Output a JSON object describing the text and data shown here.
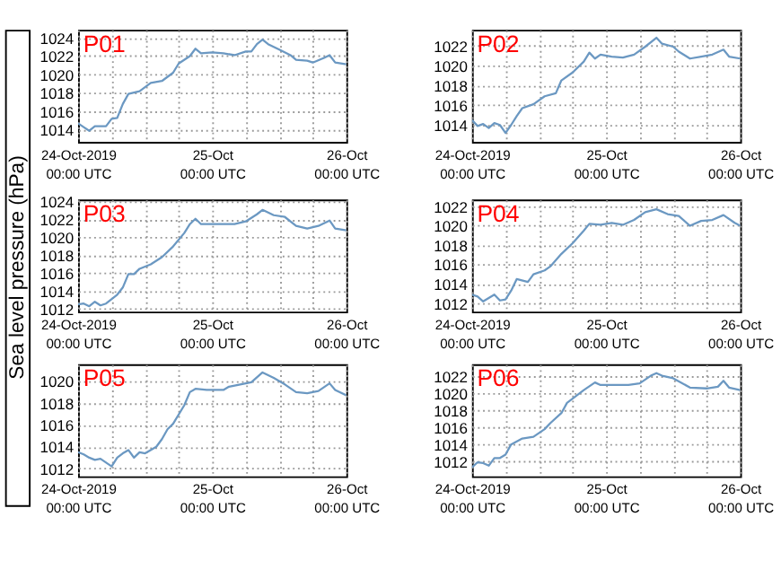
{
  "chart_data": [
    {
      "type": "line",
      "title": "P01",
      "color": "#6b98c2",
      "grid": true,
      "legend": false,
      "marker": "none",
      "line_style": "solid",
      "x": [
        "2019-10-24T00:00",
        "2019-10-24T01:00",
        "2019-10-24T02:00",
        "2019-10-24T03:00",
        "2019-10-24T05:00",
        "2019-10-24T06:00",
        "2019-10-24T07:00",
        "2019-10-24T08:00",
        "2019-10-24T09:00",
        "2019-10-24T11:00",
        "2019-10-24T13:00",
        "2019-10-24T15:00",
        "2019-10-24T17:00",
        "2019-10-24T18:00",
        "2019-10-24T20:00",
        "2019-10-24T21:00",
        "2019-10-24T22:00",
        "2019-10-25T00:00",
        "2019-10-25T02:00",
        "2019-10-25T04:00",
        "2019-10-25T06:00",
        "2019-10-25T07:00",
        "2019-10-25T08:00",
        "2019-10-25T09:00",
        "2019-10-25T10:00",
        "2019-10-25T12:00",
        "2019-10-25T14:00",
        "2019-10-25T15:00",
        "2019-10-25T17:00",
        "2019-10-25T18:00",
        "2019-10-25T20:00",
        "2019-10-25T21:00",
        "2019-10-25T22:00",
        "2019-10-26T00:00"
      ],
      "values": [
        1014.7,
        1014.3,
        1013.9,
        1014.4,
        1014.4,
        1015.2,
        1015.3,
        1016.8,
        1017.9,
        1018.2,
        1019.1,
        1019.3,
        1020.2,
        1021.2,
        1022.0,
        1022.8,
        1022.3,
        1022.4,
        1022.3,
        1022.1,
        1022.5,
        1022.5,
        1023.3,
        1023.8,
        1023.3,
        1022.7,
        1022.1,
        1021.6,
        1021.5,
        1021.3,
        1021.8,
        1022.1,
        1021.3,
        1021.1
      ],
      "xlim": [
        "2019-10-24T00:00",
        "2019-10-26T00:00"
      ],
      "xticks": [
        {
          "value": "2019-10-24T00:00",
          "label": "24-Oct-2019\n00:00 UTC"
        },
        {
          "value": "2019-10-24T06:00",
          "label": null
        },
        {
          "value": "2019-10-24T12:00",
          "label": null
        },
        {
          "value": "2019-10-24T18:00",
          "label": null
        },
        {
          "value": "2019-10-25T00:00",
          "label": "25-Oct\n00:00 UTC"
        },
        {
          "value": "2019-10-25T06:00",
          "label": null
        },
        {
          "value": "2019-10-25T12:00",
          "label": null
        },
        {
          "value": "2019-10-25T18:00",
          "label": null
        },
        {
          "value": "2019-10-26T00:00",
          "label": "26-Oct\n00:00 UTC"
        }
      ],
      "ylim": [
        1012.7,
        1024.85
      ],
      "yticks": [
        1014,
        1016,
        1018,
        1020,
        1022,
        1024
      ]
    },
    {
      "type": "line",
      "title": "P02",
      "color": "#6b98c2",
      "grid": true,
      "legend": false,
      "marker": "none",
      "line_style": "solid",
      "x": [
        "2019-10-24T00:00",
        "2019-10-24T01:00",
        "2019-10-24T02:00",
        "2019-10-24T03:00",
        "2019-10-24T04:00",
        "2019-10-24T05:00",
        "2019-10-24T06:00",
        "2019-10-24T07:00",
        "2019-10-24T08:00",
        "2019-10-24T09:00",
        "2019-10-24T11:00",
        "2019-10-24T13:00",
        "2019-10-24T15:00",
        "2019-10-24T16:00",
        "2019-10-24T18:00",
        "2019-10-24T20:00",
        "2019-10-24T21:00",
        "2019-10-24T22:00",
        "2019-10-24T23:00",
        "2019-10-25T01:00",
        "2019-10-25T03:00",
        "2019-10-25T05:00",
        "2019-10-25T07:00",
        "2019-10-25T09:00",
        "2019-10-25T10:00",
        "2019-10-25T12:00",
        "2019-10-25T13:00",
        "2019-10-25T15:00",
        "2019-10-25T17:00",
        "2019-10-25T19:00",
        "2019-10-25T21:00",
        "2019-10-25T22:00",
        "2019-10-26T00:00"
      ],
      "values": [
        1014.5,
        1013.9,
        1014.1,
        1013.7,
        1014.2,
        1014.0,
        1013.2,
        1014.0,
        1014.9,
        1015.7,
        1016.1,
        1016.9,
        1017.2,
        1018.5,
        1019.3,
        1020.4,
        1021.3,
        1020.7,
        1021.1,
        1020.9,
        1020.8,
        1021.1,
        1021.9,
        1022.8,
        1022.2,
        1021.9,
        1021.4,
        1020.7,
        1020.9,
        1021.1,
        1021.6,
        1020.9,
        1020.7
      ],
      "xlim": [
        "2019-10-24T00:00",
        "2019-10-26T00:00"
      ],
      "xticks": [
        {
          "value": "2019-10-24T00:00",
          "label": "24-Oct-2019\n00:00 UTC"
        },
        {
          "value": "2019-10-24T06:00",
          "label": null
        },
        {
          "value": "2019-10-24T12:00",
          "label": null
        },
        {
          "value": "2019-10-24T18:00",
          "label": null
        },
        {
          "value": "2019-10-25T00:00",
          "label": "25-Oct\n00:00 UTC"
        },
        {
          "value": "2019-10-25T06:00",
          "label": null
        },
        {
          "value": "2019-10-25T12:00",
          "label": null
        },
        {
          "value": "2019-10-25T18:00",
          "label": null
        },
        {
          "value": "2019-10-26T00:00",
          "label": "26-Oct\n00:00 UTC"
        }
      ],
      "ylim": [
        1012.3,
        1023.6
      ],
      "yticks": [
        1014,
        1016,
        1018,
        1020,
        1022
      ]
    },
    {
      "type": "line",
      "title": "P03",
      "ylabel": "Sea level pressure (hPa)",
      "color": "#6b98c2",
      "grid": true,
      "legend": false,
      "marker": "none",
      "line_style": "solid",
      "x": [
        "2019-10-24T00:00",
        "2019-10-24T01:00",
        "2019-10-24T02:00",
        "2019-10-24T03:00",
        "2019-10-24T04:00",
        "2019-10-24T05:00",
        "2019-10-24T07:00",
        "2019-10-24T08:00",
        "2019-10-24T09:00",
        "2019-10-24T10:00",
        "2019-10-24T11:00",
        "2019-10-24T13:00",
        "2019-10-24T15:00",
        "2019-10-24T17:00",
        "2019-10-24T19:00",
        "2019-10-24T20:00",
        "2019-10-24T21:00",
        "2019-10-24T22:00",
        "2019-10-25T00:00",
        "2019-10-25T04:00",
        "2019-10-25T06:00",
        "2019-10-25T08:00",
        "2019-10-25T09:00",
        "2019-10-25T11:00",
        "2019-10-25T13:00",
        "2019-10-25T15:00",
        "2019-10-25T17:00",
        "2019-10-25T19:00",
        "2019-10-25T21:00",
        "2019-10-25T22:00",
        "2019-10-26T00:00"
      ],
      "values": [
        1012.5,
        1012.6,
        1012.3,
        1012.8,
        1012.4,
        1012.6,
        1013.6,
        1014.4,
        1015.9,
        1015.9,
        1016.5,
        1017.0,
        1017.8,
        1019.0,
        1020.5,
        1021.5,
        1022.1,
        1021.5,
        1021.5,
        1021.5,
        1021.8,
        1022.6,
        1023.1,
        1022.5,
        1022.3,
        1021.3,
        1021.0,
        1021.3,
        1021.9,
        1021.0,
        1020.8
      ],
      "xlim": [
        "2019-10-24T00:00",
        "2019-10-26T00:00"
      ],
      "xticks": [
        {
          "value": "2019-10-24T00:00",
          "label": "24-Oct-2019\n00:00 UTC"
        },
        {
          "value": "2019-10-24T06:00",
          "label": null
        },
        {
          "value": "2019-10-24T12:00",
          "label": null
        },
        {
          "value": "2019-10-24T18:00",
          "label": null
        },
        {
          "value": "2019-10-25T00:00",
          "label": "25-Oct\n00:00 UTC"
        },
        {
          "value": "2019-10-25T06:00",
          "label": null
        },
        {
          "value": "2019-10-25T12:00",
          "label": null
        },
        {
          "value": "2019-10-25T18:00",
          "label": null
        },
        {
          "value": "2019-10-26T00:00",
          "label": "26-Oct\n00:00 UTC"
        }
      ],
      "ylim": [
        1011.7,
        1024.25
      ],
      "yticks": [
        1012,
        1014,
        1016,
        1018,
        1020,
        1022,
        1024
      ]
    },
    {
      "type": "line",
      "title": "P04",
      "color": "#6b98c2",
      "grid": true,
      "legend": false,
      "marker": "none",
      "line_style": "solid",
      "x": [
        "2019-10-24T00:00",
        "2019-10-24T01:00",
        "2019-10-24T02:00",
        "2019-10-24T04:00",
        "2019-10-24T05:00",
        "2019-10-24T06:00",
        "2019-10-24T07:00",
        "2019-10-24T08:00",
        "2019-10-24T10:00",
        "2019-10-24T11:00",
        "2019-10-24T13:00",
        "2019-10-24T14:00",
        "2019-10-24T16:00",
        "2019-10-24T18:00",
        "2019-10-24T20:00",
        "2019-10-24T21:00",
        "2019-10-24T23:00",
        "2019-10-25T01:00",
        "2019-10-25T03:00",
        "2019-10-25T05:00",
        "2019-10-25T07:00",
        "2019-10-25T09:00",
        "2019-10-25T11:00",
        "2019-10-25T13:00",
        "2019-10-25T15:00",
        "2019-10-25T17:00",
        "2019-10-25T19:00",
        "2019-10-25T21:00",
        "2019-10-25T23:00",
        "2019-10-26T00:00"
      ],
      "values": [
        1012.9,
        1012.7,
        1012.2,
        1012.9,
        1012.3,
        1012.4,
        1013.3,
        1014.5,
        1014.2,
        1015.0,
        1015.4,
        1015.8,
        1017.1,
        1018.2,
        1019.5,
        1020.2,
        1020.1,
        1020.3,
        1020.1,
        1020.6,
        1021.4,
        1021.7,
        1021.2,
        1021.0,
        1020.0,
        1020.5,
        1020.6,
        1021.1,
        1020.3,
        1020.0
      ],
      "xlim": [
        "2019-10-24T00:00",
        "2019-10-26T00:00"
      ],
      "xticks": [
        {
          "value": "2019-10-24T00:00",
          "label": "24-Oct-2019\n00:00 UTC"
        },
        {
          "value": "2019-10-24T06:00",
          "label": null
        },
        {
          "value": "2019-10-24T12:00",
          "label": null
        },
        {
          "value": "2019-10-24T18:00",
          "label": null
        },
        {
          "value": "2019-10-25T00:00",
          "label": "25-Oct\n00:00 UTC"
        },
        {
          "value": "2019-10-25T06:00",
          "label": null
        },
        {
          "value": "2019-10-25T12:00",
          "label": null
        },
        {
          "value": "2019-10-25T18:00",
          "label": null
        },
        {
          "value": "2019-10-26T00:00",
          "label": "26-Oct\n00:00 UTC"
        }
      ],
      "ylim": [
        1011.15,
        1022.7
      ],
      "yticks": [
        1012,
        1014,
        1016,
        1018,
        1020,
        1022
      ]
    },
    {
      "type": "line",
      "title": "P05",
      "color": "#6b98c2",
      "grid": true,
      "legend": false,
      "marker": "none",
      "line_style": "solid",
      "x": [
        "2019-10-24T00:00",
        "2019-10-24T01:00",
        "2019-10-24T02:00",
        "2019-10-24T03:00",
        "2019-10-24T04:00",
        "2019-10-24T06:00",
        "2019-10-24T07:00",
        "2019-10-24T08:00",
        "2019-10-24T09:00",
        "2019-10-24T10:00",
        "2019-10-24T11:00",
        "2019-10-24T12:00",
        "2019-10-24T14:00",
        "2019-10-24T15:00",
        "2019-10-24T16:00",
        "2019-10-24T17:00",
        "2019-10-24T19:00",
        "2019-10-24T20:00",
        "2019-10-24T21:00",
        "2019-10-24T23:00",
        "2019-10-25T02:00",
        "2019-10-25T03:00",
        "2019-10-25T05:00",
        "2019-10-25T07:00",
        "2019-10-25T09:00",
        "2019-10-25T11:00",
        "2019-10-25T13:00",
        "2019-10-25T15:00",
        "2019-10-25T17:00",
        "2019-10-25T19:00",
        "2019-10-25T21:00",
        "2019-10-25T22:00",
        "2019-10-26T00:00"
      ],
      "values": [
        1013.5,
        1013.3,
        1013.0,
        1012.8,
        1012.9,
        1012.2,
        1013.0,
        1013.4,
        1013.7,
        1013.0,
        1013.5,
        1013.4,
        1014.0,
        1014.7,
        1015.6,
        1016.1,
        1017.8,
        1019.0,
        1019.3,
        1019.2,
        1019.2,
        1019.5,
        1019.7,
        1019.9,
        1020.8,
        1020.3,
        1019.7,
        1019.0,
        1018.9,
        1019.1,
        1019.8,
        1019.2,
        1018.7
      ],
      "xlim": [
        "2019-10-24T00:00",
        "2019-10-26T00:00"
      ],
      "xticks": [
        {
          "value": "2019-10-24T00:00",
          "label": "24-Oct-2019\n00:00 UTC"
        },
        {
          "value": "2019-10-24T06:00",
          "label": null
        },
        {
          "value": "2019-10-24T12:00",
          "label": null
        },
        {
          "value": "2019-10-24T18:00",
          "label": null
        },
        {
          "value": "2019-10-25T00:00",
          "label": "25-Oct\n00:00 UTC"
        },
        {
          "value": "2019-10-25T06:00",
          "label": null
        },
        {
          "value": "2019-10-25T12:00",
          "label": null
        },
        {
          "value": "2019-10-25T18:00",
          "label": null
        },
        {
          "value": "2019-10-26T00:00",
          "label": "26-Oct\n00:00 UTC"
        }
      ],
      "ylim": [
        1011.3,
        1021.55
      ],
      "yticks": [
        1012,
        1014,
        1016,
        1018,
        1020
      ]
    },
    {
      "type": "line",
      "title": "P06",
      "color": "#6b98c2",
      "grid": true,
      "legend": false,
      "marker": "none",
      "line_style": "solid",
      "x": [
        "2019-10-24T00:00",
        "2019-10-24T01:00",
        "2019-10-24T02:00",
        "2019-10-24T03:00",
        "2019-10-24T04:00",
        "2019-10-24T05:00",
        "2019-10-24T06:00",
        "2019-10-24T07:00",
        "2019-10-24T09:00",
        "2019-10-24T11:00",
        "2019-10-24T13:00",
        "2019-10-24T14:00",
        "2019-10-24T16:00",
        "2019-10-24T17:00",
        "2019-10-24T20:00",
        "2019-10-24T22:00",
        "2019-10-24T23:00",
        "2019-10-25T01:00",
        "2019-10-25T04:00",
        "2019-10-25T06:00",
        "2019-10-25T08:00",
        "2019-10-25T09:00",
        "2019-10-25T10:00",
        "2019-10-25T12:00",
        "2019-10-25T15:00",
        "2019-10-25T18:00",
        "2019-10-25T20:00",
        "2019-10-25T21:00",
        "2019-10-25T22:00",
        "2019-10-26T00:00"
      ],
      "values": [
        1011.3,
        1011.9,
        1011.8,
        1011.5,
        1012.4,
        1012.4,
        1012.8,
        1014.0,
        1014.7,
        1014.9,
        1015.8,
        1016.5,
        1017.7,
        1018.9,
        1020.4,
        1021.3,
        1021.0,
        1021.0,
        1021.0,
        1021.2,
        1022.1,
        1022.4,
        1022.1,
        1021.8,
        1020.7,
        1020.6,
        1020.8,
        1021.5,
        1020.7,
        1020.4
      ],
      "xlim": [
        "2019-10-24T00:00",
        "2019-10-26T00:00"
      ],
      "xticks": [
        {
          "value": "2019-10-24T00:00",
          "label": "24-Oct-2019\n00:00 UTC"
        },
        {
          "value": "2019-10-24T06:00",
          "label": null
        },
        {
          "value": "2019-10-24T12:00",
          "label": null
        },
        {
          "value": "2019-10-24T18:00",
          "label": null
        },
        {
          "value": "2019-10-25T00:00",
          "label": "25-Oct\n00:00 UTC"
        },
        {
          "value": "2019-10-25T06:00",
          "label": null
        },
        {
          "value": "2019-10-25T12:00",
          "label": null
        },
        {
          "value": "2019-10-25T18:00",
          "label": null
        },
        {
          "value": "2019-10-26T00:00",
          "label": "26-Oct\n00:00 UTC"
        }
      ],
      "ylim": [
        1010.25,
        1023.45
      ],
      "yticks": [
        1012,
        1014,
        1016,
        1018,
        1020,
        1022
      ]
    }
  ]
}
